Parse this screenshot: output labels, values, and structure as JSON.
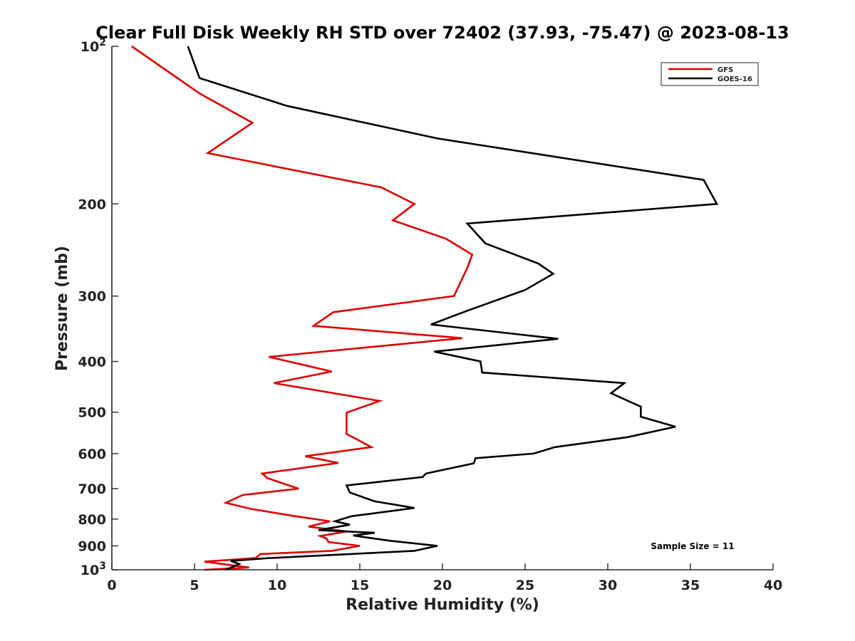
{
  "chart_data": {
    "type": "line",
    "title": "Clear Full Disk Weekly RH STD over 72402 (37.93, -75.47) @ 2023-08-13",
    "xlabel": "Relative Humidity (%)",
    "ylabel": "Pressure (mb)",
    "xlim": [
      0,
      40
    ],
    "ylim": [
      100,
      1000
    ],
    "y_scale": "log",
    "y_reversed": true,
    "x_ticks": [
      "0",
      "5",
      "10",
      "15",
      "20",
      "25",
      "30",
      "35",
      "40"
    ],
    "y_ticks": [
      {
        "value": 100,
        "base": "10",
        "exp": "2"
      },
      {
        "value": 200,
        "label": "200"
      },
      {
        "value": 300,
        "label": "300"
      },
      {
        "value": 400,
        "label": "400"
      },
      {
        "value": 500,
        "label": "500"
      },
      {
        "value": 600,
        "label": "600"
      },
      {
        "value": 700,
        "label": "700"
      },
      {
        "value": 800,
        "label": "800"
      },
      {
        "value": 900,
        "label": "900"
      },
      {
        "value": 1000,
        "base": "10",
        "exp": "3"
      }
    ],
    "legend": {
      "position": "top-right"
    },
    "series": [
      {
        "name": "GFS",
        "color": "#dd0000",
        "points": [
          [
            1.2,
            100
          ],
          [
            5.3,
            123
          ],
          [
            8.5,
            140
          ],
          [
            5.8,
            160
          ],
          [
            16.3,
            186
          ],
          [
            18.3,
            200
          ],
          [
            17.0,
            215
          ],
          [
            20.2,
            233
          ],
          [
            21.8,
            250
          ],
          [
            21.5,
            265
          ],
          [
            20.7,
            300
          ],
          [
            13.4,
            322
          ],
          [
            12.2,
            342
          ],
          [
            21.2,
            361
          ],
          [
            9.5,
            392
          ],
          [
            13.3,
            418
          ],
          [
            9.8,
            440
          ],
          [
            16.2,
            476
          ],
          [
            14.2,
            501
          ],
          [
            14.2,
            524
          ],
          [
            14.2,
            550
          ],
          [
            15.7,
            583
          ],
          [
            11.7,
            607
          ],
          [
            13.7,
            625
          ],
          [
            9.1,
            655
          ],
          [
            9.4,
            668
          ],
          [
            10.6,
            688
          ],
          [
            11.3,
            700
          ],
          [
            7.9,
            720
          ],
          [
            6.9,
            745
          ],
          [
            8.4,
            765
          ],
          [
            11.1,
            790
          ],
          [
            13.2,
            808
          ],
          [
            11.9,
            827
          ],
          [
            14.2,
            845
          ],
          [
            12.6,
            862
          ],
          [
            13.0,
            872
          ],
          [
            13.1,
            885
          ],
          [
            15.0,
            900
          ],
          [
            13.3,
            920
          ],
          [
            9.0,
            933
          ],
          [
            8.7,
            950
          ],
          [
            5.6,
            965
          ],
          [
            8.3,
            990
          ],
          [
            5.6,
            1000
          ]
        ]
      },
      {
        "name": "GOES-16",
        "color": "#000000",
        "points": [
          [
            4.6,
            100
          ],
          [
            5.3,
            115
          ],
          [
            10.6,
            130
          ],
          [
            19.7,
            150
          ],
          [
            35.8,
            180
          ],
          [
            36.6,
            200
          ],
          [
            21.5,
            218
          ],
          [
            22.6,
            238
          ],
          [
            25.8,
            260
          ],
          [
            26.7,
            272
          ],
          [
            25.0,
            292
          ],
          [
            21.5,
            320
          ],
          [
            19.3,
            340
          ],
          [
            27.0,
            362
          ],
          [
            19.5,
            383
          ],
          [
            22.3,
            400
          ],
          [
            22.4,
            420
          ],
          [
            31.0,
            440
          ],
          [
            30.2,
            460
          ],
          [
            32.0,
            488
          ],
          [
            32.0,
            510
          ],
          [
            34.1,
            533
          ],
          [
            31.2,
            558
          ],
          [
            26.8,
            583
          ],
          [
            25.5,
            600
          ],
          [
            22.0,
            612
          ],
          [
            21.9,
            626
          ],
          [
            19.0,
            655
          ],
          [
            18.8,
            665
          ],
          [
            14.2,
            690
          ],
          [
            14.4,
            712
          ],
          [
            15.9,
            740
          ],
          [
            18.3,
            762
          ],
          [
            14.5,
            790
          ],
          [
            13.5,
            808
          ],
          [
            14.4,
            820
          ],
          [
            12.5,
            840
          ],
          [
            15.9,
            850
          ],
          [
            14.6,
            860
          ],
          [
            16.8,
            880
          ],
          [
            19.7,
            900
          ],
          [
            18.3,
            920
          ],
          [
            9.5,
            950
          ],
          [
            7.2,
            962
          ],
          [
            7.7,
            975
          ],
          [
            6.9,
            1000
          ]
        ]
      }
    ],
    "annotation": "Sample Size = 11"
  }
}
